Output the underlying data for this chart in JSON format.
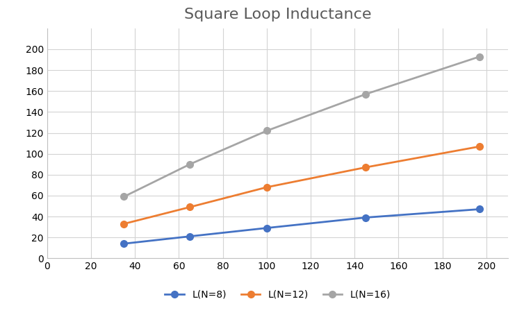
{
  "title": "Square Loop Inductance",
  "x_values": [
    35,
    65,
    100,
    145,
    197
  ],
  "series": [
    {
      "label": "L(N=8)",
      "color": "#4472C4",
      "values": [
        14,
        21,
        29,
        39,
        47
      ]
    },
    {
      "label": "L(N=12)",
      "color": "#ED7D31",
      "values": [
        33,
        49,
        68,
        87,
        107
      ]
    },
    {
      "label": "L(N=16)",
      "color": "#A5A5A5",
      "values": [
        59,
        90,
        122,
        157,
        193
      ]
    }
  ],
  "xlim": [
    0,
    210
  ],
  "ylim": [
    0,
    220
  ],
  "xticks": [
    0,
    20,
    40,
    60,
    80,
    100,
    120,
    140,
    160,
    180,
    200
  ],
  "yticks": [
    0,
    20,
    40,
    60,
    80,
    100,
    120,
    140,
    160,
    180,
    200
  ],
  "title_fontsize": 16,
  "legend_fontsize": 10,
  "tick_fontsize": 10,
  "background_color": "#FFFFFF",
  "grid_color": "#D3D3D3",
  "marker": "o",
  "linewidth": 2.0,
  "markersize": 7,
  "spine_color": "#C0C0C0"
}
